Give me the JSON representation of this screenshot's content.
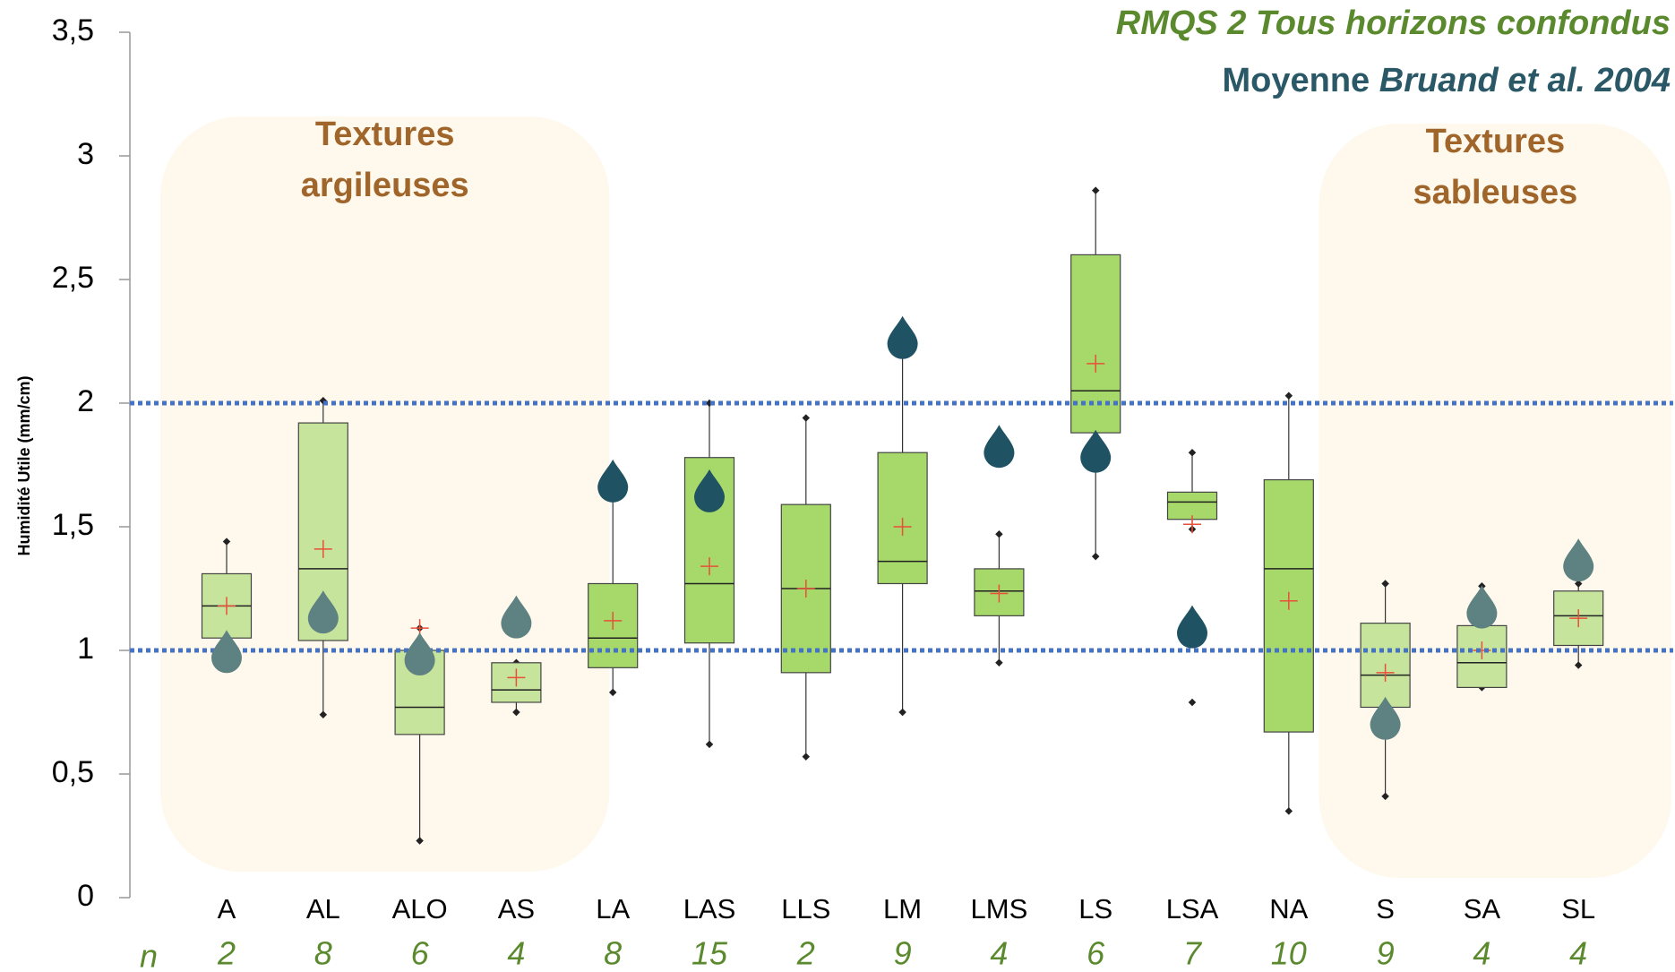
{
  "chart_data": {
    "type": "box",
    "title": "RMQS 2 Tous horizons confondus",
    "subtitle_prefix": "Moyenne",
    "subtitle_ref": "Bruand et al. 2004",
    "ylabel": "Humidité Utile (mm/cm)",
    "n_label": "n",
    "regions": [
      {
        "label": [
          "Textures",
          "argileuses"
        ]
      },
      {
        "label": [
          "Textures",
          "sableuses"
        ]
      }
    ],
    "categories": [
      "A",
      "AL",
      "ALO",
      "AS",
      "LA",
      "LAS",
      "LLS",
      "LM",
      "LMS",
      "LS",
      "LSA",
      "NA",
      "S",
      "SA",
      "SL"
    ],
    "boxes": [
      {
        "low": 1.05,
        "q1": 1.05,
        "median": 1.18,
        "q3": 1.31,
        "high": 1.44,
        "mean": 1.18
      },
      {
        "low": 0.74,
        "q1": 1.04,
        "median": 1.33,
        "q3": 1.92,
        "high": 2.01,
        "mean": 1.41
      },
      {
        "low": 0.23,
        "q1": 0.66,
        "median": 0.77,
        "q3": 1.0,
        "high": 1.09,
        "mean": 1.09
      },
      {
        "low": 0.75,
        "q1": 0.79,
        "median": 0.84,
        "q3": 0.95,
        "high": 0.95,
        "mean": 0.89
      },
      {
        "low": 0.83,
        "q1": 0.93,
        "median": 1.05,
        "q3": 1.27,
        "high": 1.62,
        "mean": 1.12
      },
      {
        "low": 0.62,
        "q1": 1.03,
        "median": 1.27,
        "q3": 1.78,
        "high": 2.0,
        "mean": 1.34
      },
      {
        "low": 0.57,
        "q1": 0.91,
        "median": 1.25,
        "q3": 1.59,
        "high": 1.94,
        "mean": 1.25
      },
      {
        "low": 0.75,
        "q1": 1.27,
        "median": 1.36,
        "q3": 1.8,
        "high": 2.2,
        "mean": 1.5
      },
      {
        "low": 0.95,
        "q1": 1.14,
        "median": 1.24,
        "q3": 1.33,
        "high": 1.47,
        "mean": 1.23
      },
      {
        "low": 1.38,
        "q1": 1.88,
        "median": 2.05,
        "q3": 2.6,
        "high": 2.86,
        "mean": 2.16
      },
      {
        "low": 1.49,
        "q1": 1.53,
        "median": 1.6,
        "q3": 1.64,
        "high": 1.8,
        "mean": 1.51,
        "outliers": [
          0.79
        ]
      },
      {
        "low": 0.35,
        "q1": 0.67,
        "median": 1.33,
        "q3": 1.69,
        "high": 2.03,
        "mean": 1.2
      },
      {
        "low": 0.41,
        "q1": 0.77,
        "median": 0.9,
        "q3": 1.11,
        "high": 1.27,
        "mean": 0.91
      },
      {
        "low": 0.85,
        "q1": 0.85,
        "median": 0.95,
        "q3": 1.1,
        "high": 1.26,
        "mean": 1.0
      },
      {
        "low": 0.94,
        "q1": 1.02,
        "median": 1.14,
        "q3": 1.24,
        "high": 1.27,
        "mean": 1.13
      }
    ],
    "bruand": [
      0.97,
      1.13,
      0.96,
      1.11,
      1.66,
      1.62,
      null,
      2.24,
      1.8,
      1.78,
      1.07,
      null,
      0.7,
      1.15,
      1.34
    ],
    "n": [
      2,
      8,
      6,
      4,
      8,
      15,
      2,
      9,
      4,
      6,
      7,
      10,
      9,
      4,
      4
    ],
    "box_colors": [
      "#c6e49c",
      "#c6e49c",
      "#c6e49c",
      "#c6e49c",
      "#a6d96a",
      "#a6d96a",
      "#a6d96a",
      "#a6d96a",
      "#a6d96a",
      "#a6d96a",
      "#a6d96a",
      "#a6d96a",
      "#c6e49c",
      "#c6e49c",
      "#c6e49c"
    ],
    "drop_colors": [
      "#5e8181",
      "#5e8181",
      "#5e8181",
      "#5e8181",
      "#1f5263",
      "#1f5263",
      "#1f5263",
      "#1f5263",
      "#1f5263",
      "#1f5263",
      "#1f5263",
      "#1f5263",
      "#5e8181",
      "#5e8181",
      "#5e8181"
    ],
    "reference_lines": [
      1,
      2
    ],
    "reference_color": "#4472c4",
    "ylim": [
      0,
      3.5
    ],
    "yticks": [
      0,
      {
        "value": 0.5,
        "label": "0,5"
      },
      1,
      {
        "value": 1.5,
        "label": "1,5"
      },
      2,
      {
        "value": 2.5,
        "label": "2,5"
      },
      3,
      {
        "value": 3.5,
        "label": "3,5"
      }
    ]
  }
}
